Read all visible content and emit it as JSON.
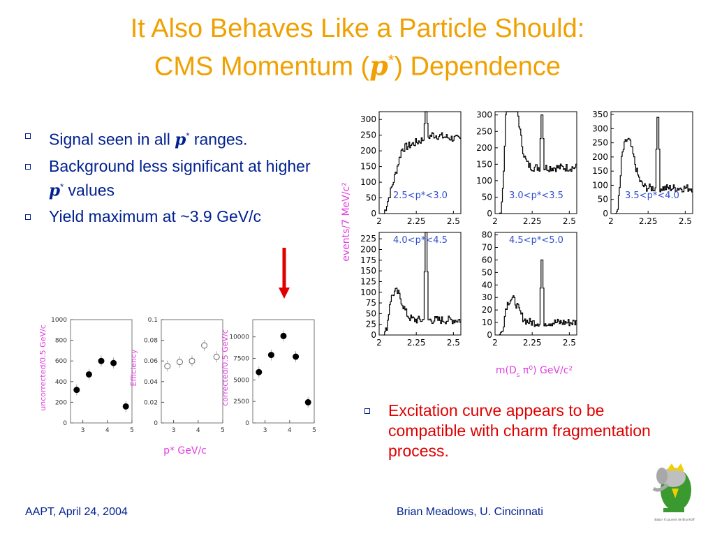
{
  "slide": {
    "title_line1": "It Also Behaves Like a Particle Should:",
    "title_line2_pre": "CMS Momentum (",
    "title_pvar": "p",
    "title_star": "*",
    "title_line2_post": ") Dependence",
    "bullets": [
      {
        "pre": "Signal seen in all ",
        "var": "p",
        "star": "*",
        "post": " ranges."
      },
      {
        "pre": "Background less significant at higher ",
        "var": "p",
        "star": "*",
        "post": " values"
      },
      {
        "pre": "Yield maximum at ~3.9 GeV/c",
        "var": "",
        "star": "",
        "post": ""
      }
    ],
    "red_bullet": "Excitation curve appears to be compatible with charm fragmentation process.",
    "footer_left": "AAPT, April 24, 2004",
    "footer_right": "Brian Meadows, U. Cincinnati",
    "logo_caption": "Babar ©Laurent de Brunhoff",
    "colors": {
      "title": "#f0a000",
      "text": "#002090",
      "highlight": "#e00000",
      "axis_label": "#e040e0",
      "annotation": "#3050d0"
    }
  },
  "chart_data": [
    {
      "type": "histogram",
      "ylabel": "events/7 MeV/c²",
      "xlabel": "m(D",
      "xlabel_sub": "s",
      "xlabel_rest": " π",
      "xlabel_sup": "0",
      "xlabel_end": ") GeV/c²",
      "xlim": [
        2.0,
        2.55
      ],
      "xticks": [
        "2",
        "2.25",
        "2.5"
      ],
      "panels": [
        {
          "label": "2.5<p*<3.0",
          "ymax": 325,
          "yticks": [
            "0",
            "50",
            "100",
            "150",
            "200",
            "250",
            "300"
          ],
          "peak_height": 325,
          "level": 240,
          "shape": "rise"
        },
        {
          "label": "3.0<p*<3.5",
          "ymax": 310,
          "yticks": [
            "0",
            "50",
            "100",
            "150",
            "200",
            "250",
            "300"
          ],
          "peak_height": 300,
          "level": 140,
          "shape": "early"
        },
        {
          "label": "3.5<p*<4.0",
          "ymax": 360,
          "yticks": [
            "0",
            "50",
            "100",
            "150",
            "200",
            "250",
            "300",
            "350"
          ],
          "peak_height": 340,
          "level": 90,
          "shape": "early"
        },
        {
          "label": "4.0<p*<4.5",
          "ymax": 240,
          "yticks": [
            "0",
            "25",
            "50",
            "75",
            "100",
            "125",
            "150",
            "175",
            "200",
            "225"
          ],
          "peak_height": 240,
          "level": 35,
          "shape": "early"
        },
        {
          "label": "4.5<p*<5.0",
          "ymax": 82,
          "yticks": [
            "0",
            "10",
            "20",
            "30",
            "40",
            "50",
            "60",
            "70",
            "80"
          ],
          "peak_height": 60,
          "level": 10,
          "shape": "early"
        }
      ]
    },
    {
      "type": "scatter",
      "xlabel": "p* GeV/c",
      "panels": [
        {
          "ylabel": "uncorrected/0.5 GeV/c",
          "ylim": [
            0,
            1000
          ],
          "yticks": [
            "0",
            "200",
            "400",
            "600",
            "800",
            "1000"
          ],
          "xticks": [
            "3",
            "4",
            "5"
          ],
          "filled": true,
          "points": [
            [
              2.75,
              320
            ],
            [
              3.25,
              470
            ],
            [
              3.75,
              600
            ],
            [
              4.25,
              580
            ],
            [
              4.75,
              160
            ]
          ]
        },
        {
          "ylabel": "Efficiency",
          "ylim": [
            0,
            0.1
          ],
          "yticks": [
            "0",
            "0.02",
            "0.04",
            "0.06",
            "0.08",
            "0.1"
          ],
          "xticks": [
            "3",
            "4",
            "5"
          ],
          "filled": false,
          "points": [
            [
              2.75,
              0.055
            ],
            [
              3.25,
              0.059
            ],
            [
              3.75,
              0.06
            ],
            [
              4.25,
              0.075
            ],
            [
              4.75,
              0.064
            ]
          ]
        },
        {
          "ylabel": "corrected/0.5 GeV/c",
          "ylim": [
            0,
            12000
          ],
          "yticks": [
            "0",
            "2500",
            "5000",
            "7500",
            "10000"
          ],
          "xticks": [
            "3",
            "4",
            "5"
          ],
          "filled": true,
          "points": [
            [
              2.75,
              5900
            ],
            [
              3.25,
              7900
            ],
            [
              3.75,
              10100
            ],
            [
              4.25,
              7700
            ],
            [
              4.75,
              2400
            ]
          ]
        }
      ],
      "xlim": [
        2.5,
        5.0
      ]
    }
  ]
}
